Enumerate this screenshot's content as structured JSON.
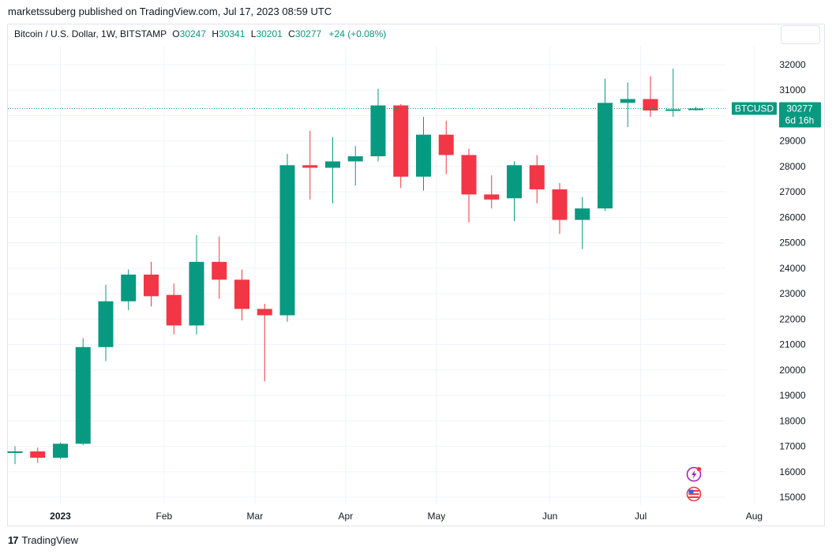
{
  "published_line": "marketssuberg published on TradingView.com, Jul 17, 2023 08:59 UTC",
  "legend": {
    "symbol": "Bitcoin / U.S. Dollar, 1W, BITSTAMP",
    "open_label": "O",
    "open": "30247",
    "high_label": "H",
    "high": "30341",
    "low_label": "L",
    "low": "30201",
    "close_label": "C",
    "close": "30277",
    "change": "+24 (+0.08%)"
  },
  "price_tag": {
    "symbol": "BTCUSD",
    "price": "30277",
    "countdown": "6d 16h"
  },
  "footer": {
    "logo": "17",
    "brand": "TradingView"
  },
  "colors": {
    "up": "#089981",
    "down": "#f23645",
    "grid": "#f0f3fa",
    "text": "#131722"
  },
  "icons": [
    "lightning-event-icon",
    "us-flag-event-icon"
  ],
  "chart_data": {
    "type": "candlestick",
    "interval": "1W",
    "ylim": [
      14700,
      32400
    ],
    "y_ticks": [
      15000,
      16000,
      17000,
      18000,
      19000,
      20000,
      21000,
      22000,
      23000,
      24000,
      25000,
      26000,
      27000,
      28000,
      29000,
      30000,
      31000,
      32000
    ],
    "x_labels": [
      {
        "label": "2023",
        "bold": true,
        "index": 2
      },
      {
        "label": "Feb",
        "index": 6.57
      },
      {
        "label": "Mar",
        "index": 10.57
      },
      {
        "label": "Apr",
        "index": 14.57
      },
      {
        "label": "May",
        "index": 18.57
      },
      {
        "label": "Jun",
        "index": 23.57
      },
      {
        "label": "Jul",
        "index": 27.57
      },
      {
        "label": "Aug",
        "index": 32.57
      }
    ],
    "last_price": 30277,
    "candles": [
      {
        "o": 16780,
        "h": 17000,
        "l": 16300,
        "c": 16800
      },
      {
        "o": 16800,
        "h": 16950,
        "l": 16350,
        "c": 16550
      },
      {
        "o": 16550,
        "h": 17150,
        "l": 16500,
        "c": 17100
      },
      {
        "o": 17100,
        "h": 21250,
        "l": 17050,
        "c": 20900
      },
      {
        "o": 20900,
        "h": 23350,
        "l": 20350,
        "c": 22700
      },
      {
        "o": 22700,
        "h": 23950,
        "l": 22350,
        "c": 23750
      },
      {
        "o": 23750,
        "h": 24250,
        "l": 22500,
        "c": 22900
      },
      {
        "o": 22950,
        "h": 23400,
        "l": 21400,
        "c": 21750
      },
      {
        "o": 21750,
        "h": 25300,
        "l": 21400,
        "c": 24250
      },
      {
        "o": 24250,
        "h": 25250,
        "l": 22800,
        "c": 23550
      },
      {
        "o": 23550,
        "h": 23950,
        "l": 21950,
        "c": 22400
      },
      {
        "o": 22400,
        "h": 22600,
        "l": 19550,
        "c": 22150
      },
      {
        "o": 22150,
        "h": 28500,
        "l": 21900,
        "c": 28050
      },
      {
        "o": 28050,
        "h": 29400,
        "l": 26700,
        "c": 27950
      },
      {
        "o": 27950,
        "h": 29150,
        "l": 26550,
        "c": 28200
      },
      {
        "o": 28200,
        "h": 28800,
        "l": 27250,
        "c": 28400
      },
      {
        "o": 28400,
        "h": 31050,
        "l": 28200,
        "c": 30400
      },
      {
        "o": 30400,
        "h": 30450,
        "l": 27150,
        "c": 27600
      },
      {
        "o": 27600,
        "h": 29950,
        "l": 27050,
        "c": 29250
      },
      {
        "o": 29250,
        "h": 29800,
        "l": 27700,
        "c": 28450
      },
      {
        "o": 28450,
        "h": 28700,
        "l": 25800,
        "c": 26900
      },
      {
        "o": 26900,
        "h": 27650,
        "l": 26350,
        "c": 26700
      },
      {
        "o": 26750,
        "h": 28200,
        "l": 25850,
        "c": 28050
      },
      {
        "o": 28050,
        "h": 28450,
        "l": 26550,
        "c": 27100
      },
      {
        "o": 27100,
        "h": 27350,
        "l": 25350,
        "c": 25900
      },
      {
        "o": 25900,
        "h": 26800,
        "l": 24750,
        "c": 26350
      },
      {
        "o": 26350,
        "h": 31450,
        "l": 26250,
        "c": 30500
      },
      {
        "o": 30500,
        "h": 31300,
        "l": 29550,
        "c": 30650
      },
      {
        "o": 30650,
        "h": 31550,
        "l": 29950,
        "c": 30200
      },
      {
        "o": 30200,
        "h": 31850,
        "l": 29950,
        "c": 30247
      },
      {
        "o": 30247,
        "h": 30341,
        "l": 30201,
        "c": 30277
      }
    ]
  }
}
